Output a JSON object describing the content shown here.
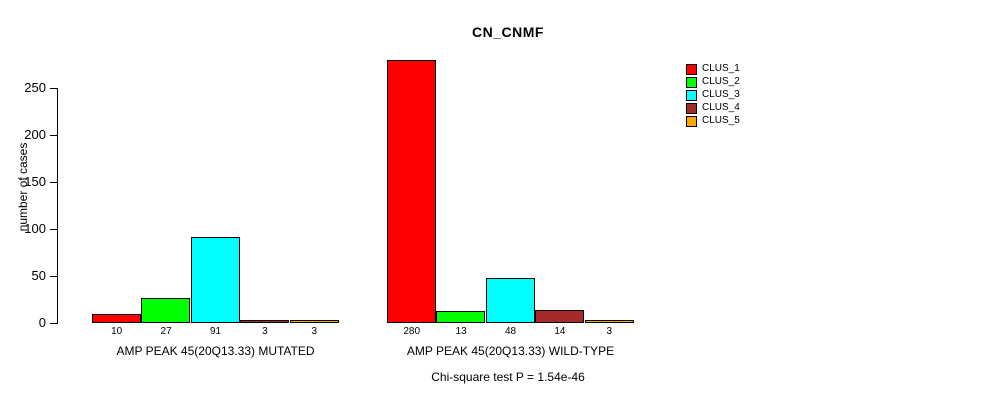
{
  "title": "CN_CNMF",
  "footer": {
    "stat_text": "Chi-square test P = 1.54e-46"
  },
  "legend": {
    "items": [
      {
        "label": "CLUS_1",
        "color": "#FF0000"
      },
      {
        "label": "CLUS_2",
        "color": "#00FF00"
      },
      {
        "label": "CLUS_3",
        "color": "#00FFFF"
      },
      {
        "label": "CLUS_4",
        "color": "#A52A2A"
      },
      {
        "label": "CLUS_5",
        "color": "#FFA500"
      }
    ]
  },
  "chart_data": {
    "type": "bar",
    "title": "CN_CNMF",
    "xlabel": "",
    "ylabel": "number of cases",
    "ylim": [
      0,
      280
    ],
    "yticks": [
      0,
      50,
      100,
      150,
      200,
      250
    ],
    "grid": false,
    "legend_position": "right",
    "series_names": [
      "CLUS_1",
      "CLUS_2",
      "CLUS_3",
      "CLUS_4",
      "CLUS_5"
    ],
    "colors": [
      "#FF0000",
      "#00FF00",
      "#00FFFF",
      "#A52A2A",
      "#FFA500"
    ],
    "groups": [
      {
        "label": "AMP PEAK 45(20Q13.33) MUTATED",
        "values": [
          10,
          27,
          91,
          3,
          3
        ]
      },
      {
        "label": "AMP PEAK 45(20Q13.33) WILD-TYPE",
        "values": [
          280,
          13,
          48,
          14,
          3
        ]
      }
    ],
    "annotation": "Chi-square test P = 1.54e-46"
  }
}
